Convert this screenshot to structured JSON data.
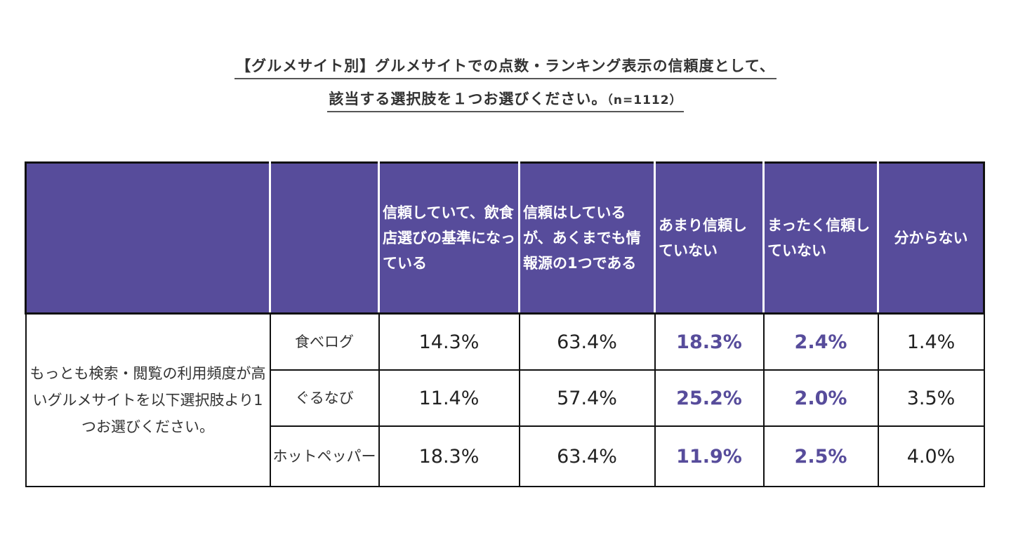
{
  "title": {
    "line1": "【グルメサイト別】グルメサイトでの点数・ランキング表示の信頼度として、",
    "line2": "該当する選択肢を１つお選びください。",
    "sample": "（n=1112）"
  },
  "table": {
    "question": "もっとも検索・閲覧の利用頻度が高いグルメサイトを以下選択肢より1つお選びください。",
    "columns": [
      "信頼していて、飲食店選びの基準になっている",
      "信頼はしているが、あくまでも情報源の1つである",
      "あまり信頼していない",
      "まったく信頼していない",
      "分からない"
    ],
    "rows": [
      {
        "site": "食べログ",
        "values": [
          "14.3%",
          "63.4%",
          "18.3%",
          "2.4%",
          "1.4%"
        ]
      },
      {
        "site": "ぐるなび",
        "values": [
          "11.4%",
          "57.4%",
          "25.2%",
          "2.0%",
          "3.5%"
        ]
      },
      {
        "site": "ホットペッパー",
        "values": [
          "18.3%",
          "63.4%",
          "11.9%",
          "2.5%",
          "4.0%"
        ]
      }
    ]
  },
  "colors": {
    "header_bg": "#574c9b",
    "emphasis_text": "#574c9b"
  },
  "chart_data": {
    "type": "table",
    "title": "【グルメサイト別】グルメサイトでの点数・ランキング表示の信頼度として、該当する選択肢を１つお選びください。（n=1112）",
    "categories": [
      "食べログ",
      "ぐるなび",
      "ホットペッパー"
    ],
    "series": [
      {
        "name": "信頼していて、飲食店選びの基準になっている",
        "values": [
          14.3,
          11.4,
          18.3
        ]
      },
      {
        "name": "信頼はしているが、あくまでも情報源の1つである",
        "values": [
          63.4,
          57.4,
          63.4
        ]
      },
      {
        "name": "あまり信頼していない",
        "values": [
          18.3,
          25.2,
          11.9
        ]
      },
      {
        "name": "まったく信頼していない",
        "values": [
          2.4,
          2.0,
          2.5
        ]
      },
      {
        "name": "分からない",
        "values": [
          1.4,
          3.5,
          4.0
        ]
      }
    ],
    "unit": "%"
  }
}
